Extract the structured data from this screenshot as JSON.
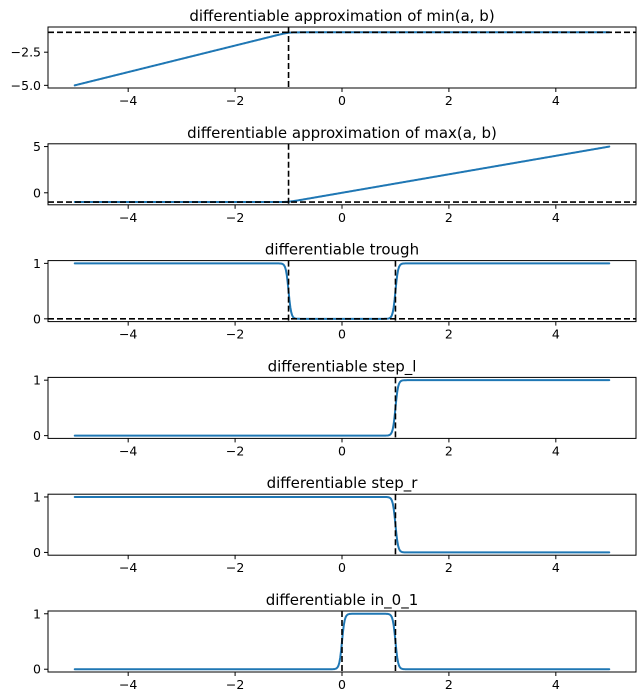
{
  "colors": {
    "series": "#1f77b4",
    "reference": "#000000"
  },
  "chart_data": [
    {
      "type": "line",
      "title": "differentiable approximation of min(a, b)",
      "xlabel": "",
      "ylabel": "",
      "xlim": [
        -5.5,
        5.5
      ],
      "ylim": [
        -5.2,
        -0.6
      ],
      "xticks": [
        -4,
        -2,
        0,
        2,
        4
      ],
      "xtick_labels": [
        "−4",
        "−2",
        "0",
        "2",
        "4"
      ],
      "yticks": [
        -5.0,
        -2.5
      ],
      "ytick_labels": [
        "−5.0",
        "−2.5"
      ],
      "grid": false,
      "function": "min",
      "params": {
        "b": -1
      },
      "series": [
        {
          "x": [
            -5,
            5
          ],
          "y": [
            -5,
            -1
          ]
        }
      ],
      "hlines": [
        -1
      ],
      "vlines": [
        -1
      ]
    },
    {
      "type": "line",
      "title": "differentiable approximation of max(a, b)",
      "xlabel": "",
      "ylabel": "",
      "xlim": [
        -5.5,
        5.5
      ],
      "ylim": [
        -1.3,
        5.3
      ],
      "xticks": [
        -4,
        -2,
        0,
        2,
        4
      ],
      "xtick_labels": [
        "−4",
        "−2",
        "0",
        "2",
        "4"
      ],
      "yticks": [
        0,
        5
      ],
      "ytick_labels": [
        "0",
        "5"
      ],
      "grid": false,
      "function": "max",
      "params": {
        "b": -1
      },
      "series": [
        {
          "x": [
            -5,
            5
          ],
          "y": [
            -1,
            5
          ]
        }
      ],
      "hlines": [
        -1
      ],
      "vlines": [
        -1
      ]
    },
    {
      "type": "line",
      "title": "differentiable trough",
      "xlabel": "",
      "ylabel": "",
      "xlim": [
        -5.5,
        5.5
      ],
      "ylim": [
        -0.05,
        1.05
      ],
      "xticks": [
        -4,
        -2,
        0,
        2,
        4
      ],
      "xtick_labels": [
        "−4",
        "−2",
        "0",
        "2",
        "4"
      ],
      "yticks": [
        0,
        1
      ],
      "ytick_labels": [
        "0",
        "1"
      ],
      "grid": false,
      "function": "trough",
      "params": {
        "lo": -1,
        "hi": 1
      },
      "series": [
        {
          "x": [
            -5,
            5
          ],
          "y": [
            1,
            1
          ]
        }
      ],
      "hlines": [
        0
      ],
      "vlines": [
        -1,
        1
      ]
    },
    {
      "type": "line",
      "title": "differentiable step_l",
      "xlabel": "",
      "ylabel": "",
      "xlim": [
        -5.5,
        5.5
      ],
      "ylim": [
        -0.05,
        1.05
      ],
      "xticks": [
        -4,
        -2,
        0,
        2,
        4
      ],
      "xtick_labels": [
        "−4",
        "−2",
        "0",
        "2",
        "4"
      ],
      "yticks": [
        0,
        1
      ],
      "ytick_labels": [
        "0",
        "1"
      ],
      "grid": false,
      "function": "step_l",
      "params": {
        "at": 1
      },
      "series": [
        {
          "x": [
            -5,
            5
          ],
          "y": [
            0,
            1
          ]
        }
      ],
      "hlines": [],
      "vlines": [
        1
      ]
    },
    {
      "type": "line",
      "title": "differentiable step_r",
      "xlabel": "",
      "ylabel": "",
      "xlim": [
        -5.5,
        5.5
      ],
      "ylim": [
        -0.05,
        1.05
      ],
      "xticks": [
        -4,
        -2,
        0,
        2,
        4
      ],
      "xtick_labels": [
        "−4",
        "−2",
        "0",
        "2",
        "4"
      ],
      "yticks": [
        0,
        1
      ],
      "ytick_labels": [
        "0",
        "1"
      ],
      "grid": false,
      "function": "step_r",
      "params": {
        "at": 1
      },
      "series": [
        {
          "x": [
            -5,
            5
          ],
          "y": [
            1,
            0
          ]
        }
      ],
      "hlines": [],
      "vlines": [
        1
      ]
    },
    {
      "type": "line",
      "title": "differentiable in_0_1",
      "xlabel": "",
      "ylabel": "",
      "xlim": [
        -5.5,
        5.5
      ],
      "ylim": [
        -0.05,
        1.05
      ],
      "xticks": [
        -4,
        -2,
        0,
        2,
        4
      ],
      "xtick_labels": [
        "−4",
        "−2",
        "0",
        "2",
        "4"
      ],
      "yticks": [
        0,
        1
      ],
      "ytick_labels": [
        "0",
        "1"
      ],
      "grid": false,
      "function": "in_0_1",
      "params": {
        "lo": 0,
        "hi": 1
      },
      "series": [
        {
          "x": [
            -5,
            5
          ],
          "y": [
            0,
            0
          ]
        }
      ],
      "hlines": [],
      "vlines": [
        0,
        1
      ]
    }
  ]
}
